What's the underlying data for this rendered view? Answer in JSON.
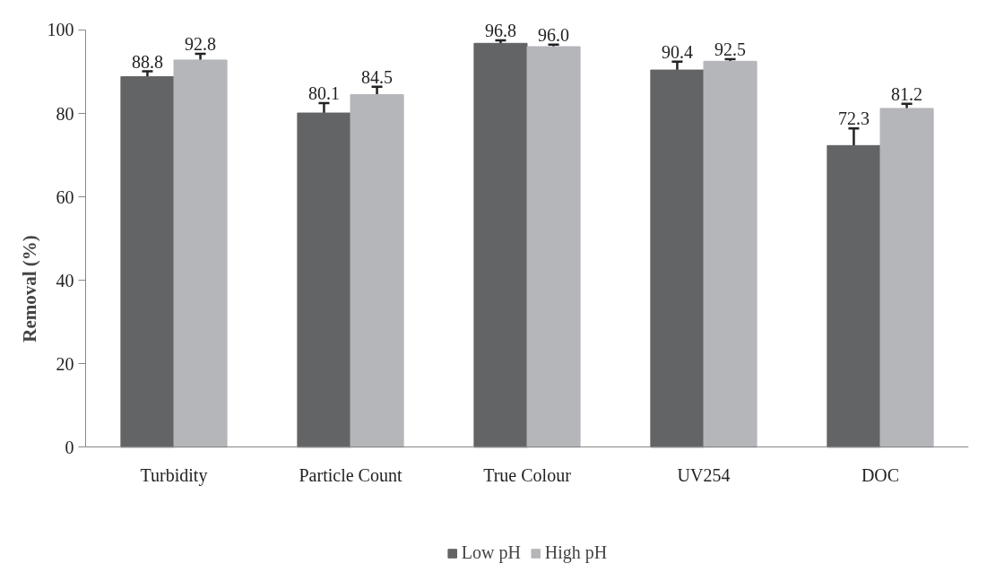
{
  "chart_data": {
    "type": "bar",
    "ylabel": "Removal (%)",
    "categories": [
      "Turbidity",
      "Particle Count",
      "True Colour",
      "UV254",
      "DOC"
    ],
    "series": [
      {
        "name": "Low pH",
        "color": "#636466",
        "values": [
          88.8,
          80.1,
          96.8,
          90.4,
          72.3
        ],
        "errors": [
          1.3,
          2.4,
          0.7,
          2.0,
          4.1
        ],
        "value_labels": [
          "88.8",
          "80.1",
          "96.8",
          "90.4",
          "72.3"
        ]
      },
      {
        "name": "High pH",
        "color": "#b5b6ba",
        "values": [
          92.8,
          84.5,
          96.0,
          92.5,
          81.2
        ],
        "errors": [
          1.5,
          1.9,
          0.5,
          0.5,
          1.1
        ],
        "value_labels": [
          "92.8",
          "84.5",
          "96.0",
          "92.5",
          "81.2"
        ]
      }
    ],
    "ylim": [
      0,
      100
    ],
    "yticks": [
      0,
      20,
      40,
      60,
      80,
      100
    ],
    "grid": false,
    "legend": "bottom"
  }
}
